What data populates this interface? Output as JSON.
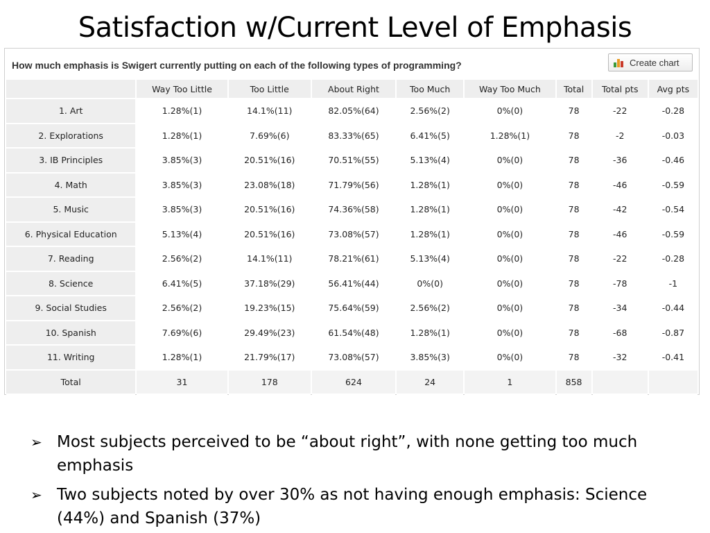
{
  "slide": {
    "title": "Satisfaction w/Current Level of Emphasis"
  },
  "survey": {
    "question": "How much emphasis is Swigert currently putting on each of the following types of programming?",
    "create_chart_label": "Create chart",
    "columns": [
      "",
      "Way Too Little",
      "Too Little",
      "About Right",
      "Too Much",
      "Way Too Much",
      "Total",
      "Total pts",
      "Avg pts"
    ],
    "rows": [
      [
        "1. Art",
        "1.28%(1)",
        "14.1%(11)",
        "82.05%(64)",
        "2.56%(2)",
        "0%(0)",
        "78",
        "-22",
        "-0.28"
      ],
      [
        "2. Explorations",
        "1.28%(1)",
        "7.69%(6)",
        "83.33%(65)",
        "6.41%(5)",
        "1.28%(1)",
        "78",
        "-2",
        "-0.03"
      ],
      [
        "3. IB Principles",
        "3.85%(3)",
        "20.51%(16)",
        "70.51%(55)",
        "5.13%(4)",
        "0%(0)",
        "78",
        "-36",
        "-0.46"
      ],
      [
        "4. Math",
        "3.85%(3)",
        "23.08%(18)",
        "71.79%(56)",
        "1.28%(1)",
        "0%(0)",
        "78",
        "-46",
        "-0.59"
      ],
      [
        "5. Music",
        "3.85%(3)",
        "20.51%(16)",
        "74.36%(58)",
        "1.28%(1)",
        "0%(0)",
        "78",
        "-42",
        "-0.54"
      ],
      [
        "6. Physical Education",
        "5.13%(4)",
        "20.51%(16)",
        "73.08%(57)",
        "1.28%(1)",
        "0%(0)",
        "78",
        "-46",
        "-0.59"
      ],
      [
        "7. Reading",
        "2.56%(2)",
        "14.1%(11)",
        "78.21%(61)",
        "5.13%(4)",
        "0%(0)",
        "78",
        "-22",
        "-0.28"
      ],
      [
        "8. Science",
        "6.41%(5)",
        "37.18%(29)",
        "56.41%(44)",
        "0%(0)",
        "0%(0)",
        "78",
        "-78",
        "-1"
      ],
      [
        "9. Social Studies",
        "2.56%(2)",
        "19.23%(15)",
        "75.64%(59)",
        "2.56%(2)",
        "0%(0)",
        "78",
        "-34",
        "-0.44"
      ],
      [
        "10. Spanish",
        "7.69%(6)",
        "29.49%(23)",
        "61.54%(48)",
        "1.28%(1)",
        "0%(0)",
        "78",
        "-68",
        "-0.87"
      ],
      [
        "11. Writing",
        "1.28%(1)",
        "21.79%(17)",
        "73.08%(57)",
        "3.85%(3)",
        "0%(0)",
        "78",
        "-32",
        "-0.41"
      ]
    ],
    "total_row": [
      "Total",
      "31",
      "178",
      "624",
      "24",
      "1",
      "858",
      "",
      ""
    ]
  },
  "bullets": [
    "Most subjects perceived to be “about right”, with none getting too much emphasis",
    "Two subjects noted by over 30% as not having enough emphasis:  Science (44%) and Spanish (37%)"
  ],
  "icons": {
    "bullet": "arrowhead-right-icon",
    "chart": "bar-chart-icon"
  }
}
